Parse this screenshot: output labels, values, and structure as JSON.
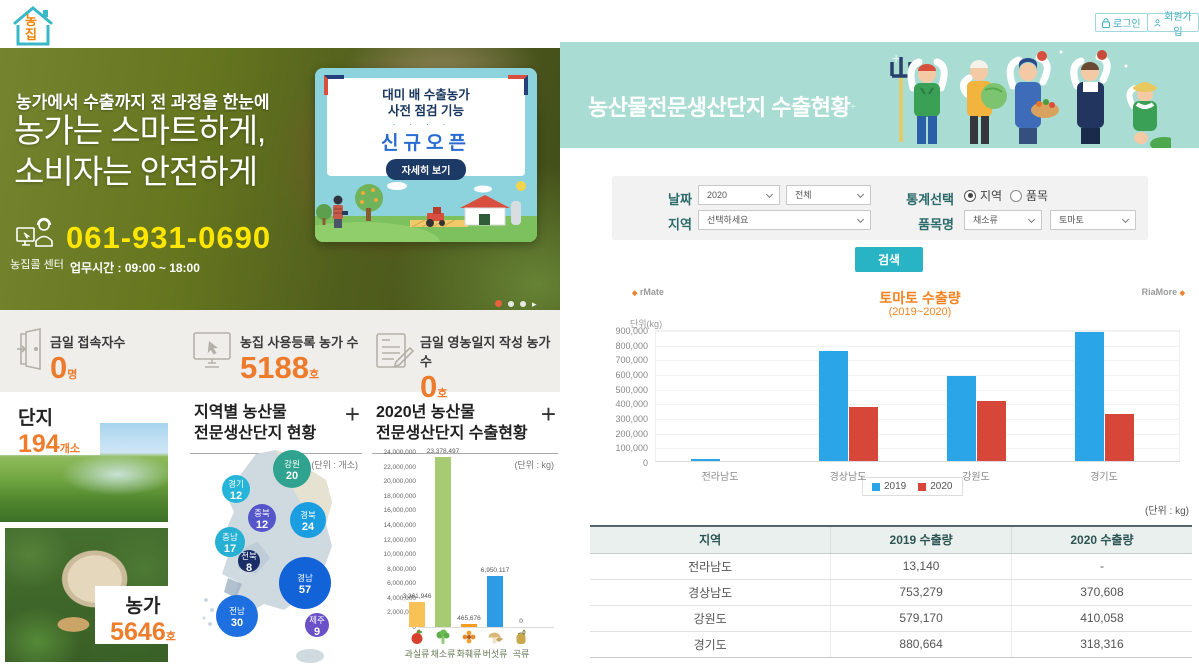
{
  "left": {
    "logo": "농집",
    "hero": {
      "tagline": "농가에서 수출까지 전 과정을 한눈에",
      "headline_line1": "농가는 스마트하게,",
      "headline_line2": "소비자는 안전하게",
      "call_center": "농집콜 센터",
      "phone": "061-931-0690",
      "hours": "업무시간 : 09:00 ~ 18:00"
    },
    "promo": {
      "line1": "대미 배 수출농가",
      "line2": "사전 점검 기능",
      "highlight": "신규오픈",
      "cta": "자세히 보기"
    },
    "stats": [
      {
        "label": "금일 접속자수",
        "value": "0",
        "unit": "명",
        "icon": "door-icon"
      },
      {
        "label": "농집 사용등록 농가 수",
        "value": "5188",
        "unit": "호",
        "icon": "monitor-icon"
      },
      {
        "label": "금일 영농일지 작성 농가 수",
        "value": "0",
        "unit": "호",
        "icon": "journal-icon"
      }
    ],
    "complex": {
      "label": "단지",
      "value": "194",
      "unit": "개소"
    },
    "farm": {
      "label": "농가",
      "value": "5646",
      "unit": "호"
    },
    "region_chart": {
      "title_line1": "지역별 농산물",
      "title_line2": "전문생산단지 현황",
      "expand_label": "+",
      "unit_note": "(단위 : 개소)",
      "chart_data": {
        "type": "bubble-map",
        "title": "지역별 농산물 전문생산단지 현황",
        "unit": "개소",
        "series": [
          {
            "label": "강원",
            "value": 20,
            "color": "#2fa390",
            "x": 94,
            "y": 19,
            "r": 19
          },
          {
            "label": "경기",
            "value": 12,
            "color": "#25b5d8",
            "x": 38,
            "y": 39,
            "r": 14
          },
          {
            "label": "충북",
            "value": 12,
            "color": "#5456c9",
            "x": 64,
            "y": 68,
            "r": 14
          },
          {
            "label": "경북",
            "value": 24,
            "color": "#1b9de2",
            "x": 110,
            "y": 70,
            "r": 18
          },
          {
            "label": "충남",
            "value": 17,
            "color": "#25b0d4",
            "x": 32,
            "y": 92,
            "r": 15
          },
          {
            "label": "전북",
            "value": 8,
            "color": "#1a2e68",
            "x": 51,
            "y": 111,
            "r": 11
          },
          {
            "label": "경남",
            "value": 57,
            "color": "#1262d8",
            "x": 107,
            "y": 133,
            "r": 26
          },
          {
            "label": "전남",
            "value": 30,
            "color": "#1e6fe0",
            "x": 39,
            "y": 166,
            "r": 21
          },
          {
            "label": "제주",
            "value": 9,
            "color": "#6a51c8",
            "x": 119,
            "y": 175,
            "r": 12
          }
        ]
      }
    },
    "export_chart": {
      "title_line1": "2020년 농산물",
      "title_line2": "전문생산단지 수출현황",
      "expand_label": "+",
      "unit_note": "(단위 : kg)",
      "chart_data": {
        "type": "bar",
        "title": "2020년 농산물 전문생산단지 수출현황",
        "categories": [
          "과실류",
          "채소류",
          "화훼류",
          "버섯류",
          "곡류"
        ],
        "values": [
          3361946,
          23378497,
          465676,
          6950117,
          0
        ],
        "labels": [
          "3,361,946",
          "23,378,497",
          "465,676",
          "6,950,117",
          "0"
        ],
        "colors": [
          "#f9c257",
          "#a6cb72",
          "#f59d1e",
          "#2d9ce4",
          "#cccccc"
        ],
        "icons": [
          "apple-icon",
          "broccoli-icon",
          "flower-icon",
          "mushroom-icon",
          "grain-icon"
        ],
        "ylabel": "kg",
        "ylim": [
          0,
          24000000
        ],
        "yticks": [
          "24,000,000",
          "22,000,000",
          "20,000,000",
          "18,000,000",
          "16,000,000",
          "14,000,000",
          "12,000,000",
          "10,000,000",
          "8,000,000",
          "6,000,000",
          "4,000,000",
          "2,000,000",
          "0"
        ]
      }
    }
  },
  "right": {
    "login_label": "로그인",
    "signup_label": "회원가입",
    "banner_title": "농산물전문생산단지 수출현황",
    "filters": {
      "date_label": "날짜",
      "date_year": "2020",
      "date_period": "전체",
      "stat_label": "통계선택",
      "radio_region": "지역",
      "radio_item": "품목",
      "region_label": "지역",
      "region_value": "선택하세요",
      "item_label": "품목명",
      "item_category": "채소류",
      "item_value": "토마토",
      "search_label": "검색"
    },
    "chart": {
      "brand_left": "rMate",
      "brand_right": "RiaMore",
      "title": "토마토 수출량",
      "subtitle": "(2019~2020)",
      "axis_unit": "단위(kg)",
      "chart_data": {
        "type": "bar",
        "title": "토마토 수출량 (2019~2020)",
        "categories": [
          "전라남도",
          "경상남도",
          "강원도",
          "경기도"
        ],
        "series": [
          {
            "name": "2019",
            "color": "#2aa6e8",
            "values": [
              13140,
              753279,
              579170,
              880664
            ]
          },
          {
            "name": "2020",
            "color": "#d6473a",
            "values": [
              null,
              370608,
              410058,
              318316
            ]
          }
        ],
        "ylim": [
          0,
          900000
        ],
        "yticks": [
          "900,000",
          "800,000",
          "700,000",
          "600,000",
          "500,000",
          "400,000",
          "300,000",
          "200,000",
          "100,000",
          "0"
        ],
        "legend_position": "bottom"
      }
    },
    "table": {
      "unit_note": "(단위 : kg)",
      "headers": [
        "지역",
        "2019 수출량",
        "2020 수출량"
      ],
      "rows": [
        [
          "전라남도",
          "13,140",
          "-"
        ],
        [
          "경상남도",
          "753,279",
          "370,608"
        ],
        [
          "강원도",
          "579,170",
          "410,058"
        ],
        [
          "경기도",
          "880,664",
          "318,316"
        ]
      ]
    }
  }
}
